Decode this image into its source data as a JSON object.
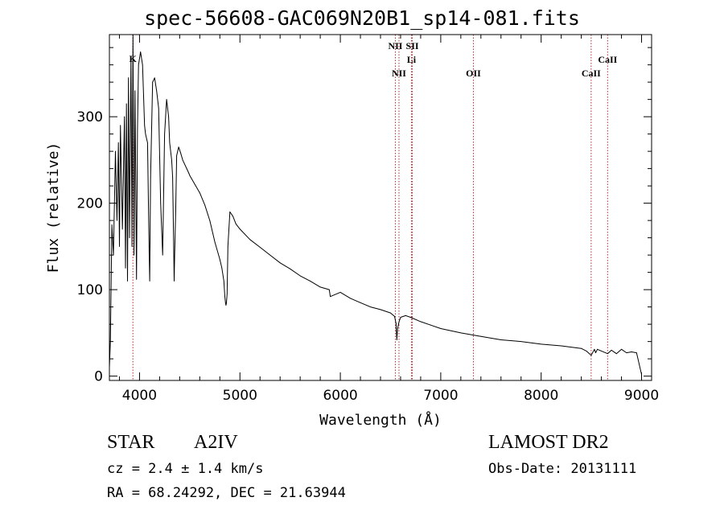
{
  "title": "spec-56608-GAC069N20B1_sp14-081.fits",
  "info": {
    "object_type": "STAR",
    "spectral_class": "A2IV",
    "survey": "LAMOST DR2",
    "cz": "cz = 2.4 ± 1.4 km/s",
    "obs_date": "Obs-Date: 20131111",
    "radec": "RA =  68.24292, DEC =  21.63944"
  },
  "colors": {
    "spectrum": "#000000",
    "line_marker": "#b03030",
    "axes": "#000000"
  },
  "chart_data": {
    "type": "line",
    "title": "spec-56608-GAC069N20B1_sp14-081.fits",
    "xlabel": "Wavelength (Å)",
    "ylabel": "Flux (relative)",
    "xlim": [
      3700,
      9100
    ],
    "ylim": [
      -5,
      395
    ],
    "xticks": [
      4000,
      5000,
      6000,
      7000,
      8000,
      9000
    ],
    "xtick_labels": [
      "4000",
      "5000",
      "6000",
      "7000",
      "8000",
      "9000"
    ],
    "yticks": [
      0,
      100,
      200,
      300
    ],
    "ytick_labels": [
      "0",
      "100",
      "200",
      "300"
    ],
    "grid": false,
    "series": [
      {
        "x": [
          3700,
          3710,
          3725,
          3740,
          3760,
          3775,
          3790,
          3800,
          3810,
          3830,
          3850,
          3860,
          3870,
          3880,
          3890,
          3900,
          3915,
          3925,
          3935,
          3945,
          3955,
          3970,
          3980,
          3990,
          4010,
          4030,
          4050,
          4060,
          4080,
          4095,
          4101,
          4110,
          4130,
          4150,
          4170,
          4190,
          4210,
          4230,
          4250,
          4270,
          4290,
          4300,
          4320,
          4330,
          4340,
          4345,
          4350,
          4360,
          4370,
          4390,
          4410,
          4430,
          4450,
          4470,
          4490,
          4500,
          4550,
          4600,
          4650,
          4700,
          4750,
          4800,
          4820,
          4840,
          4850,
          4856,
          4861,
          4866,
          4872,
          4880,
          4900,
          4930,
          4960,
          5000,
          5100,
          5200,
          5300,
          5400,
          5500,
          5600,
          5700,
          5800,
          5890,
          5900,
          6000,
          6100,
          6200,
          6300,
          6400,
          6500,
          6540,
          6555,
          6563,
          6570,
          6585,
          6600,
          6650,
          6700,
          6800,
          6900,
          7000,
          7200,
          7400,
          7600,
          7800,
          8000,
          8200,
          8400,
          8450,
          8498,
          8530,
          8542,
          8560,
          8600,
          8662,
          8700,
          8750,
          8800,
          8850,
          8900,
          8950,
          8980,
          9000
        ],
        "y": [
          10,
          40,
          175,
          140,
          260,
          180,
          270,
          150,
          290,
          170,
          300,
          125,
          315,
          110,
          345,
          160,
          370,
          150,
          395,
          140,
          330,
          112,
          285,
          360,
          375,
          360,
          290,
          280,
          270,
          150,
          110,
          230,
          340,
          345,
          330,
          310,
          200,
          140,
          280,
          320,
          300,
          270,
          250,
          230,
          150,
          110,
          140,
          190,
          255,
          265,
          258,
          250,
          245,
          240,
          235,
          232,
          222,
          212,
          198,
          180,
          155,
          135,
          125,
          110,
          92,
          85,
          82,
          85,
          95,
          150,
          190,
          185,
          176,
          170,
          158,
          149,
          140,
          131,
          124,
          116,
          110,
          103,
          100,
          92,
          97,
          90,
          85,
          80,
          77,
          73,
          69,
          61,
          42,
          55,
          63,
          68,
          70,
          68,
          63,
          59,
          55,
          50,
          46,
          42,
          40,
          37,
          35,
          32,
          29,
          24,
          31,
          27,
          31,
          29,
          26,
          30,
          26,
          31,
          27,
          28,
          27,
          12,
          2
        ]
      }
    ],
    "line_markers": [
      {
        "label": "K",
        "wavelength": 3934
      },
      {
        "label": "NII",
        "wavelength": 6548
      },
      {
        "label": "NII",
        "wavelength": 6584
      },
      {
        "label": "SII",
        "wavelength": 6717
      },
      {
        "label": "Li",
        "wavelength": 6708
      },
      {
        "label": "OII",
        "wavelength": 7325
      },
      {
        "label": "CaII",
        "wavelength": 8498
      },
      {
        "label": "CaII",
        "wavelength": 8662
      }
    ]
  }
}
